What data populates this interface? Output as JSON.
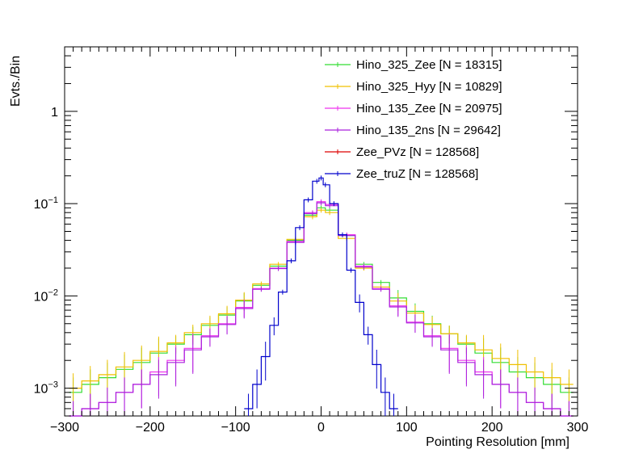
{
  "chart_data": {
    "type": "line",
    "title": "",
    "xlabel": "Pointing Resolution [mm]",
    "ylabel": "Evts./Bin",
    "xlim": [
      -300,
      300
    ],
    "ylim": [
      0.0005,
      5
    ],
    "yscale": "log",
    "x_tick_labels": [
      "−300",
      "−200",
      "−100",
      "0",
      "100",
      "200",
      "300"
    ],
    "x_tick_values": [
      -300,
      -200,
      -100,
      0,
      100,
      200,
      300
    ],
    "y_tick_labels": [
      {
        "base": "10",
        "exp": "−3",
        "value": 0.001
      },
      {
        "base": "10",
        "exp": "−2",
        "value": 0.01
      },
      {
        "base": "10",
        "exp": "−1",
        "value": 0.1
      },
      {
        "base": "1",
        "exp": "",
        "value": 1
      }
    ],
    "legend_position": "top-right",
    "series": [
      {
        "name": "Hino_325_Zee [N = 18315]",
        "color": "#33dd33",
        "x": [
          -290,
          -270,
          -250,
          -230,
          -210,
          -190,
          -170,
          -150,
          -130,
          -110,
          -90,
          -70,
          -50,
          -30,
          -10,
          0,
          10,
          30,
          50,
          70,
          90,
          110,
          130,
          150,
          170,
          190,
          210,
          230,
          250,
          270,
          290
        ],
        "y": [
          0.0009,
          0.0011,
          0.0013,
          0.0016,
          0.0019,
          0.0024,
          0.003,
          0.0038,
          0.0048,
          0.0062,
          0.0088,
          0.013,
          0.021,
          0.04,
          0.075,
          0.09,
          0.085,
          0.045,
          0.022,
          0.014,
          0.0095,
          0.0068,
          0.005,
          0.0039,
          0.003,
          0.0024,
          0.0019,
          0.0015,
          0.0013,
          0.0011,
          0.0009
        ]
      },
      {
        "name": "Hino_325_Hyy [N = 10829]",
        "color": "#f0c000",
        "x": [
          -290,
          -270,
          -250,
          -230,
          -210,
          -190,
          -170,
          -150,
          -130,
          -110,
          -90,
          -70,
          -50,
          -30,
          -10,
          0,
          10,
          30,
          50,
          70,
          90,
          110,
          130,
          150,
          170,
          190,
          210,
          230,
          250,
          270,
          290
        ],
        "y": [
          0.001,
          0.0012,
          0.0014,
          0.0017,
          0.002,
          0.0025,
          0.0031,
          0.004,
          0.005,
          0.0064,
          0.009,
          0.0135,
          0.022,
          0.041,
          0.072,
          0.085,
          0.08,
          0.042,
          0.02,
          0.0125,
          0.0088,
          0.0065,
          0.0049,
          0.0039,
          0.0031,
          0.0026,
          0.0021,
          0.0018,
          0.0015,
          0.0013,
          0.0011
        ]
      },
      {
        "name": "Hino_135_Zee [N = 20975]",
        "color": "#ee33ee",
        "x": [
          -290,
          -270,
          -250,
          -230,
          -210,
          -190,
          -170,
          -150,
          -130,
          -110,
          -90,
          -70,
          -50,
          -30,
          -10,
          0,
          10,
          30,
          50,
          70,
          90,
          110,
          130,
          150,
          170,
          190,
          210,
          230,
          250,
          270,
          290
        ],
        "y": [
          0.0005,
          0.0006,
          0.0007,
          0.0009,
          0.0011,
          0.0015,
          0.002,
          0.0027,
          0.0037,
          0.005,
          0.0075,
          0.012,
          0.02,
          0.039,
          0.08,
          0.105,
          0.098,
          0.046,
          0.021,
          0.012,
          0.0078,
          0.0052,
          0.0037,
          0.0027,
          0.002,
          0.0015,
          0.0011,
          0.0009,
          0.0007,
          0.0006,
          0.0005
        ]
      },
      {
        "name": "Hino_135_2ns [N = 29642]",
        "color": "#aa22dd",
        "x": [
          -290,
          -270,
          -250,
          -230,
          -210,
          -190,
          -170,
          -150,
          -130,
          -110,
          -90,
          -70,
          -50,
          -30,
          -10,
          0,
          10,
          30,
          50,
          70,
          90,
          110,
          130,
          150,
          170,
          190,
          210,
          230,
          250,
          270,
          290
        ],
        "y": [
          0.0005,
          0.0006,
          0.0007,
          0.0009,
          0.0011,
          0.0014,
          0.0019,
          0.0026,
          0.0036,
          0.0049,
          0.0073,
          0.0118,
          0.0198,
          0.038,
          0.078,
          0.102,
          0.095,
          0.045,
          0.0205,
          0.0118,
          0.0076,
          0.0051,
          0.0036,
          0.0026,
          0.0019,
          0.0014,
          0.0011,
          0.0009,
          0.0007,
          0.0006,
          0.0005
        ]
      },
      {
        "name": "Zee_PVz [N = 128568]",
        "color": "#dd0000",
        "x": [],
        "y": []
      },
      {
        "name": "Zee_truZ [N = 128568]",
        "color": "#0000cc",
        "x": [
          -85,
          -75,
          -65,
          -55,
          -45,
          -35,
          -25,
          -15,
          -5,
          0,
          5,
          15,
          25,
          35,
          45,
          55,
          65,
          75,
          85
        ],
        "y": [
          0.0006,
          0.0011,
          0.0022,
          0.0048,
          0.011,
          0.024,
          0.055,
          0.11,
          0.175,
          0.19,
          0.16,
          0.1,
          0.046,
          0.019,
          0.0085,
          0.0038,
          0.0018,
          0.0009,
          0.0006
        ]
      }
    ]
  }
}
